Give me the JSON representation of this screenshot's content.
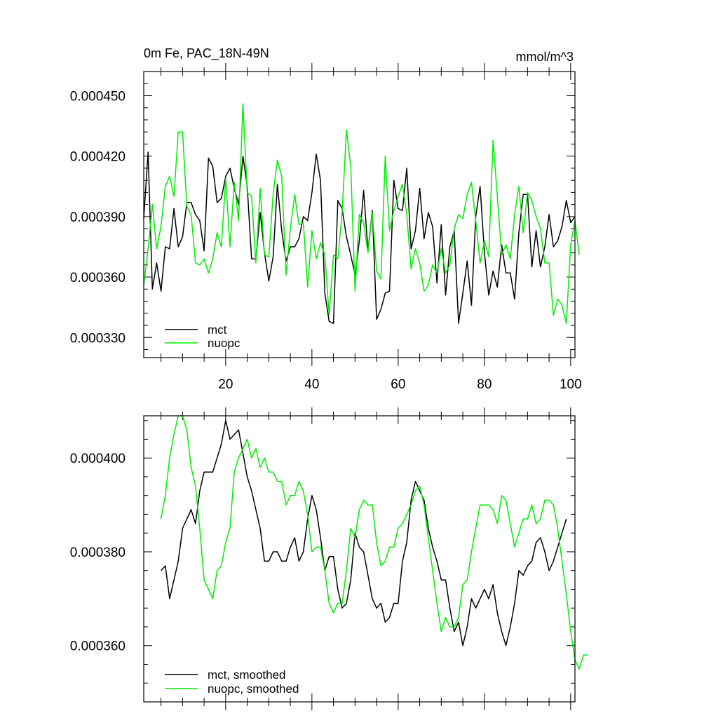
{
  "chart_data": [
    {
      "type": "line",
      "title": "0m Fe, PAC_18N-49N",
      "units": "mmol/m^3",
      "xlim": [
        1,
        101
      ],
      "ylim": [
        0.00032,
        0.000462
      ],
      "yticks": [
        0.00033,
        0.00036,
        0.00039,
        0.00042,
        0.00045
      ],
      "ytick_labels": [
        "0.000330",
        "0.000360",
        "0.000390",
        "0.000420",
        "0.000450"
      ],
      "xticks": [
        20,
        40,
        60,
        80,
        100
      ],
      "xtick_labels": [
        "20",
        "40",
        "60",
        "80",
        "100"
      ],
      "legend": [
        "mct",
        "nuopc"
      ],
      "legend_position": "bottom-left",
      "series": [
        {
          "name": "mct",
          "color": "#000000",
          "x_start": 1,
          "values": [
            0.000389,
            0.000422,
            0.000354,
            0.000367,
            0.000353,
            0.000375,
            0.000374,
            0.000394,
            0.000375,
            0.00038,
            0.000397,
            0.000397,
            0.000391,
            0.000388,
            0.000373,
            0.000419,
            0.000415,
            0.000397,
            0.000399,
            0.00041,
            0.000414,
            0.000404,
            0.000396,
            0.00042,
            0.000405,
            0.000369,
            0.000369,
            0.000392,
            0.000372,
            0.000358,
            0.00037,
            0.000406,
            0.000383,
            0.000368,
            0.000375,
            0.000375,
            0.000379,
            0.00039,
            0.000388,
            0.000402,
            0.000421,
            0.000408,
            0.000352,
            0.000338,
            0.000337,
            0.000398,
            0.000394,
            0.00038,
            0.000371,
            0.000361,
            0.000378,
            0.000403,
            0.000373,
            0.000393,
            0.000339,
            0.000344,
            0.000352,
            0.000353,
            0.000408,
            0.000394,
            0.000393,
            0.000414,
            0.000374,
            0.000383,
            0.000404,
            0.000379,
            0.000392,
            0.000385,
            0.000357,
            0.000386,
            0.000351,
            0.000375,
            0.000383,
            0.000337,
            0.000352,
            0.000368,
            0.000346,
            0.00039,
            0.000405,
            0.000372,
            0.000351,
            0.000363,
            0.000355,
            0.000376,
            0.000362,
            0.000362,
            0.000349,
            0.000382,
            0.000401,
            0.000401,
            0.000365,
            0.000383,
            0.000365,
            0.000375,
            0.000391,
            0.000375,
            0.000378,
            0.000385,
            0.000398,
            0.000387,
            0.00039
          ]
        },
        {
          "name": "nuopc",
          "color": "#00ee00",
          "x_start": 1,
          "values": [
            0.000356,
            0.000374,
            0.000396,
            0.000374,
            0.000385,
            0.000405,
            0.00041,
            0.0004,
            0.000432,
            0.000432,
            0.000395,
            0.000391,
            0.000367,
            0.000366,
            0.000369,
            0.000362,
            0.000369,
            0.000382,
            0.000375,
            0.000409,
            0.000375,
            0.000407,
            0.000388,
            0.000446,
            0.000402,
            0.0004,
            0.000367,
            0.000404,
            0.000371,
            0.00037,
            0.000401,
            0.000418,
            0.00041,
            0.000361,
            0.000384,
            0.000401,
            0.000386,
            0.000387,
            0.000355,
            0.000383,
            0.000369,
            0.000377,
            0.000371,
            0.000341,
            0.000371,
            0.000369,
            0.000392,
            0.000433,
            0.000415,
            0.000353,
            0.000391,
            0.000387,
            0.000372,
            0.000392,
            0.000363,
            0.000359,
            0.00042,
            0.000383,
            0.000393,
            0.0004,
            0.000406,
            0.000391,
            0.000364,
            0.000374,
            0.000367,
            0.000353,
            0.000356,
            0.000366,
            0.000362,
            0.000374,
            0.000362,
            0.000366,
            0.000384,
            0.000391,
            0.000389,
            0.000401,
            0.000407,
            0.000388,
            0.000367,
            0.000378,
            0.00037,
            0.000428,
            0.0004,
            0.000371,
            0.000376,
            0.000369,
            0.000391,
            0.000405,
            0.000382,
            0.000402,
            0.000398,
            0.00039,
            0.000384,
            0.000367,
            0.000367,
            0.000341,
            0.000349,
            0.000346,
            0.000337,
            0.000376,
            0.000388,
            0.000371
          ]
        }
      ]
    },
    {
      "type": "line",
      "title": "",
      "xlim": [
        1,
        101
      ],
      "ylim": [
        0.000348,
        0.000409
      ],
      "yticks": [
        0.00036,
        0.00038,
        0.0004
      ],
      "ytick_labels": [
        "0.000360",
        "0.000380",
        "0.000400"
      ],
      "xticks": [
        20,
        40,
        60,
        80,
        100
      ],
      "xtick_labels": [],
      "legend": [
        "mct, smoothed",
        "nuopc, smoothed"
      ],
      "legend_position": "bottom-left",
      "series": [
        {
          "name": "mct, smoothed",
          "color": "#000000",
          "x_start": 5,
          "values": [
            0.000376,
            0.000377,
            0.00037,
            0.000374,
            0.000378,
            0.000385,
            0.000387,
            0.000389,
            0.000386,
            0.000393,
            0.000397,
            0.000397,
            0.000397,
            0.0004,
            0.000403,
            0.000408,
            0.000404,
            0.000405,
            0.000406,
            0.000401,
            0.000396,
            0.000393,
            0.000389,
            0.000385,
            0.000378,
            0.000378,
            0.00038,
            0.00038,
            0.000378,
            0.000378,
            0.000381,
            0.000383,
            0.000378,
            0.00038,
            0.000387,
            0.000392,
            0.000389,
            0.000383,
            0.000376,
            0.000379,
            0.000379,
            0.000372,
            0.000368,
            0.000369,
            0.000374,
            0.000384,
            0.000381,
            0.00038,
            0.000375,
            0.00037,
            0.000368,
            0.000369,
            0.000365,
            0.000366,
            0.000369,
            0.000369,
            0.000378,
            0.000382,
            0.000391,
            0.000395,
            0.000393,
            0.000391,
            0.000385,
            0.000381,
            0.000378,
            0.000374,
            0.000374,
            0.000368,
            0.000363,
            0.000365,
            0.00036,
            0.000364,
            0.00037,
            0.000368,
            0.00037,
            0.000372,
            0.00037,
            0.000373,
            0.000367,
            0.000363,
            0.00036,
            0.000364,
            0.000369,
            0.000376,
            0.000375,
            0.000377,
            0.000378,
            0.000382,
            0.000383,
            0.00038,
            0.000376,
            0.000378,
            0.000381,
            0.000384,
            0.000387
          ]
        },
        {
          "name": "nuopc, smoothed",
          "color": "#00ee00",
          "x_start": 5,
          "values": [
            0.000387,
            0.000392,
            0.0004,
            0.000405,
            0.000409,
            0.000409,
            0.000406,
            0.000398,
            0.000394,
            0.000385,
            0.000374,
            0.000372,
            0.00037,
            0.000376,
            0.000377,
            0.000382,
            0.000385,
            0.000397,
            0.0004,
            0.000402,
            0.000404,
            0.0004,
            0.000402,
            0.000398,
            0.0004,
            0.000397,
            0.000397,
            0.000395,
            0.000395,
            0.00039,
            0.000392,
            0.000392,
            0.000395,
            0.000393,
            0.000388,
            0.00038,
            0.000381,
            0.000381,
            0.000376,
            0.000369,
            0.000367,
            0.000369,
            0.000369,
            0.000376,
            0.000385,
            0.000383,
            0.000389,
            0.000391,
            0.00039,
            0.00039,
            0.000382,
            0.000377,
            0.000378,
            0.000381,
            0.000381,
            0.000385,
            0.000386,
            0.000388,
            0.00039,
            0.000393,
            0.000394,
            0.00039,
            0.000383,
            0.000376,
            0.000369,
            0.000363,
            0.000366,
            0.000364,
            0.000364,
            0.000366,
            0.000373,
            0.000374,
            0.00038,
            0.000385,
            0.00039,
            0.00039,
            0.00039,
            0.000389,
            0.000386,
            0.000392,
            0.000391,
            0.000386,
            0.000381,
            0.000384,
            0.000387,
            0.000387,
            0.00039,
            0.000386,
            0.000387,
            0.000391,
            0.000391,
            0.00039,
            0.000385,
            0.000378,
            0.000371,
            0.000363,
            0.000357,
            0.000355,
            0.000358,
            0.000358
          ]
        }
      ]
    }
  ]
}
